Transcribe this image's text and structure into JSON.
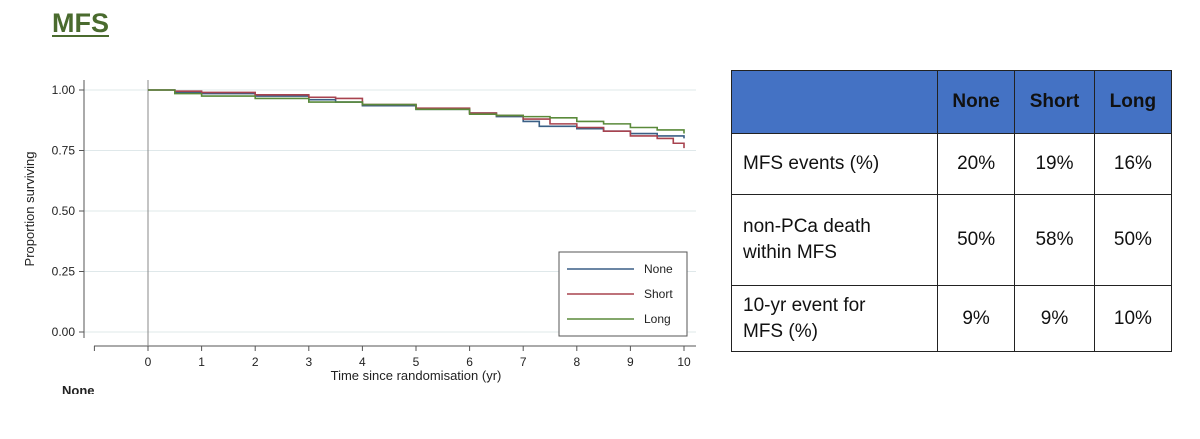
{
  "slide": {
    "title": "MFS"
  },
  "chart_data": {
    "type": "line",
    "xlabel": "Time since randomisation (yr)",
    "ylabel": "Proportion surviving",
    "xlim": [
      -1,
      10
    ],
    "ylim": [
      0,
      1
    ],
    "x_ticks": [
      "0",
      "1",
      "2",
      "3",
      "4",
      "5",
      "6",
      "7",
      "8",
      "9",
      "10"
    ],
    "y_ticks": [
      "0.00",
      "0.25",
      "0.50",
      "0.75",
      "1.00"
    ],
    "grid": true,
    "legend": "bottom-right",
    "series": [
      {
        "name": "None",
        "color": "#3a5f85",
        "x": [
          0,
          0.5,
          1,
          2,
          3,
          3.5,
          4,
          5,
          6,
          6.5,
          7,
          7.3,
          8,
          8.5,
          9,
          9.5,
          10
        ],
        "y": [
          1.0,
          0.99,
          0.985,
          0.975,
          0.96,
          0.95,
          0.935,
          0.92,
          0.905,
          0.89,
          0.87,
          0.85,
          0.84,
          0.83,
          0.82,
          0.81,
          0.8
        ]
      },
      {
        "name": "Short",
        "color": "#a8434f",
        "x": [
          0,
          0.5,
          1,
          2,
          3,
          3.5,
          4,
          5,
          6,
          6.5,
          7,
          7.5,
          8,
          8.5,
          9,
          9.5,
          9.8,
          10
        ],
        "y": [
          1.0,
          0.995,
          0.99,
          0.98,
          0.97,
          0.965,
          0.94,
          0.925,
          0.905,
          0.895,
          0.88,
          0.86,
          0.845,
          0.83,
          0.81,
          0.8,
          0.78,
          0.76
        ]
      },
      {
        "name": "Long",
        "color": "#5a8a3a",
        "x": [
          0,
          0.5,
          1,
          2,
          3,
          4,
          5,
          6,
          6.5,
          7,
          7.5,
          8,
          8.5,
          9,
          9.5,
          10
        ],
        "y": [
          1.0,
          0.985,
          0.975,
          0.965,
          0.95,
          0.94,
          0.92,
          0.9,
          0.895,
          0.89,
          0.885,
          0.87,
          0.86,
          0.845,
          0.835,
          0.82
        ]
      }
    ]
  },
  "bottom_label": "None",
  "table": {
    "headers": [
      "",
      "None",
      "Short",
      "Long"
    ],
    "rows": [
      {
        "label_lines": [
          "MFS events (%)"
        ],
        "values": [
          "20%",
          "19%",
          "16%"
        ]
      },
      {
        "label_lines": [
          "non-PCa death",
          "within MFS"
        ],
        "values": [
          "50%",
          "58%",
          "50%"
        ]
      },
      {
        "label_lines": [
          "10-yr event for",
          "MFS (%)"
        ],
        "values": [
          "9%",
          "9%",
          "10%"
        ]
      }
    ]
  }
}
